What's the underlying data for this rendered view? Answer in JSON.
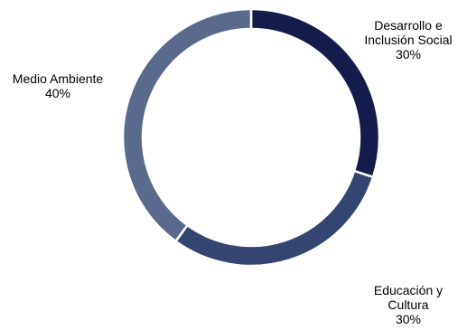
{
  "chart_data": {
    "type": "pie",
    "variant": "donut",
    "title": "",
    "slices": [
      {
        "label_lines": [
          "Desarrollo e",
          "Inclusión Social"
        ],
        "value_label": "30%",
        "value": 30,
        "color": "#131c4a"
      },
      {
        "label_lines": [
          "Educación y",
          "Cultura"
        ],
        "value_label": "30%",
        "value": 30,
        "color": "#334570"
      },
      {
        "label_lines": [
          "Medio Ambiente"
        ],
        "value_label": "40%",
        "value": 40,
        "color": "#5a6a8c"
      }
    ],
    "legend": "none",
    "start": "top",
    "direction": "clockwise"
  }
}
